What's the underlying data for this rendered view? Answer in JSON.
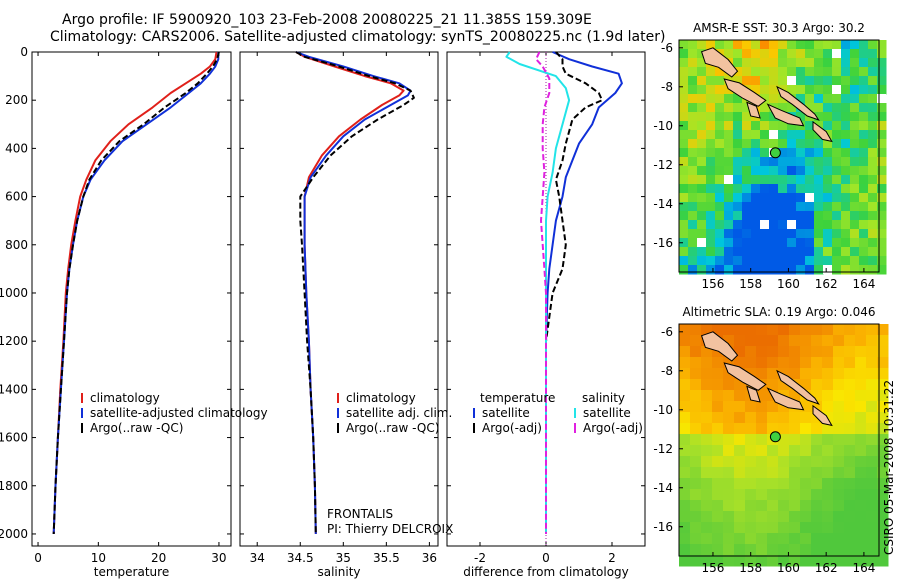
{
  "header": {
    "line1": "Argo profile: IF 5900920_103 23-Feb-2008 20080225_21 11.385S 159.309E",
    "line2": "Climatology: CARS2006. Satellite-adjusted climatology: synTS_20080225.nc (1.9d later)"
  },
  "watermark": "CSIRO 05-Mar-2008 10:31:22",
  "colors": {
    "climatology": "#e0201a",
    "satellite": "#1030d8",
    "argo": "#000000",
    "salt_sat": "#22e4e8",
    "salt_argo": "#e020e0"
  },
  "chart_data": [
    {
      "type": "line",
      "id": "temperature",
      "xlabel": "temperature",
      "ylabel": "",
      "xlim": [
        -1,
        32
      ],
      "ylim": [
        2050,
        0
      ],
      "xticks": [
        0,
        10,
        20,
        30
      ],
      "yticks": [
        0,
        200,
        400,
        600,
        800,
        1000,
        1200,
        1400,
        1600,
        1800,
        2000
      ],
      "series": [
        {
          "name": "climatology",
          "color": "#e0201a",
          "points": [
            [
              29.6,
              0
            ],
            [
              29.4,
              30
            ],
            [
              28.5,
              60
            ],
            [
              27.0,
              90
            ],
            [
              24.5,
              130
            ],
            [
              22.0,
              170
            ],
            [
              19.0,
              230
            ],
            [
              15.0,
              300
            ],
            [
              12.0,
              370
            ],
            [
              9.5,
              450
            ],
            [
              8.0,
              530
            ],
            [
              7.0,
              600
            ],
            [
              6.2,
              700
            ],
            [
              5.5,
              800
            ],
            [
              5.0,
              900
            ],
            [
              4.6,
              1000
            ],
            [
              4.2,
              1200
            ],
            [
              3.7,
              1400
            ],
            [
              3.3,
              1600
            ],
            [
              2.9,
              1800
            ],
            [
              2.6,
              2000
            ]
          ]
        },
        {
          "name": "satellite-adjusted climatology",
          "color": "#1030d8",
          "points": [
            [
              29.9,
              0
            ],
            [
              29.9,
              30
            ],
            [
              29.4,
              60
            ],
            [
              28.5,
              90
            ],
            [
              27.0,
              130
            ],
            [
              25.0,
              170
            ],
            [
              22.0,
              230
            ],
            [
              18.0,
              300
            ],
            [
              14.0,
              370
            ],
            [
              11.0,
              450
            ],
            [
              8.7,
              530
            ],
            [
              7.5,
              600
            ],
            [
              6.5,
              700
            ],
            [
              5.8,
              800
            ],
            [
              5.2,
              900
            ],
            [
              4.8,
              1000
            ],
            [
              4.3,
              1200
            ],
            [
              3.8,
              1400
            ],
            [
              3.3,
              1600
            ],
            [
              2.9,
              1800
            ],
            [
              2.6,
              2000
            ]
          ]
        },
        {
          "name": "Argo(..raw -QC)",
          "color": "#000000",
          "dashed": true,
          "points": [
            [
              30.0,
              0
            ],
            [
              29.7,
              30
            ],
            [
              29.0,
              60
            ],
            [
              28.0,
              90
            ],
            [
              26.5,
              130
            ],
            [
              24.5,
              170
            ],
            [
              21.0,
              230
            ],
            [
              17.5,
              300
            ],
            [
              13.5,
              370
            ],
            [
              10.5,
              450
            ],
            [
              8.5,
              530
            ],
            [
              7.5,
              600
            ],
            [
              6.5,
              700
            ],
            [
              5.8,
              800
            ],
            [
              5.2,
              900
            ],
            [
              4.8,
              1000
            ],
            [
              4.3,
              1200
            ],
            [
              3.8,
              1400
            ],
            [
              3.3,
              1600
            ],
            [
              2.9,
              1800
            ],
            [
              2.6,
              2000
            ]
          ]
        }
      ],
      "legend": [
        {
          "label": "climatology",
          "color": "#e0201a"
        },
        {
          "label": "satellite-adjusted climatology",
          "color": "#1030d8"
        },
        {
          "label": "Argo(..raw -QC)",
          "color": "#000000"
        }
      ]
    },
    {
      "type": "line",
      "id": "salinity",
      "xlabel": "salinity",
      "ylabel": "",
      "xlim": [
        33.8,
        36.1
      ],
      "ylim": [
        2050,
        0
      ],
      "xticks": [
        34,
        34.5,
        35,
        35.5,
        36
      ],
      "yticks": [],
      "series": [
        {
          "name": "climatology",
          "color": "#e0201a",
          "points": [
            [
              34.45,
              0
            ],
            [
              34.55,
              20
            ],
            [
              34.9,
              60
            ],
            [
              35.25,
              100
            ],
            [
              35.55,
              130
            ],
            [
              35.7,
              160
            ],
            [
              35.65,
              180
            ],
            [
              35.45,
              220
            ],
            [
              35.2,
              280
            ],
            [
              34.95,
              350
            ],
            [
              34.75,
              430
            ],
            [
              34.6,
              520
            ],
            [
              34.55,
              600
            ],
            [
              34.55,
              800
            ],
            [
              34.57,
              1000
            ],
            [
              34.6,
              1200
            ],
            [
              34.62,
              1400
            ],
            [
              34.65,
              1600
            ],
            [
              34.67,
              1800
            ],
            [
              34.68,
              2000
            ]
          ]
        },
        {
          "name": "satellite adj. clim.",
          "color": "#1030d8",
          "points": [
            [
              34.45,
              0
            ],
            [
              34.6,
              20
            ],
            [
              35.0,
              60
            ],
            [
              35.35,
              100
            ],
            [
              35.65,
              130
            ],
            [
              35.78,
              160
            ],
            [
              35.75,
              180
            ],
            [
              35.55,
              220
            ],
            [
              35.25,
              280
            ],
            [
              35.0,
              350
            ],
            [
              34.8,
              430
            ],
            [
              34.62,
              520
            ],
            [
              34.55,
              600
            ],
            [
              34.55,
              800
            ],
            [
              34.57,
              1000
            ],
            [
              34.6,
              1200
            ],
            [
              34.62,
              1400
            ],
            [
              34.65,
              1600
            ],
            [
              34.67,
              1800
            ],
            [
              34.68,
              2000
            ]
          ]
        },
        {
          "name": "Argo(..raw -QC)",
          "color": "#000000",
          "dashed": true,
          "points": [
            [
              34.45,
              0
            ],
            [
              34.55,
              20
            ],
            [
              34.95,
              60
            ],
            [
              35.3,
              100
            ],
            [
              35.6,
              130
            ],
            [
              35.78,
              160
            ],
            [
              35.82,
              190
            ],
            [
              35.7,
              220
            ],
            [
              35.4,
              280
            ],
            [
              35.1,
              350
            ],
            [
              34.85,
              430
            ],
            [
              34.65,
              520
            ],
            [
              34.5,
              600
            ],
            [
              34.5,
              700
            ],
            [
              34.52,
              800
            ],
            [
              34.55,
              1000
            ],
            [
              34.58,
              1200
            ],
            [
              34.62,
              1400
            ],
            [
              34.65,
              1600
            ],
            [
              34.67,
              1800
            ],
            [
              34.68,
              2000
            ]
          ]
        }
      ],
      "legend": [
        {
          "label": "climatology",
          "color": "#e0201a"
        },
        {
          "label": "satellite adj. clim.",
          "color": "#1030d8"
        },
        {
          "label": "Argo(..raw -QC)",
          "color": "#000000"
        }
      ],
      "annotation": [
        "FRONTALIS",
        "PI: Thierry DELCROIX"
      ]
    },
    {
      "type": "line",
      "id": "difference",
      "xlabel": "difference from climatology",
      "ylabel": "",
      "xlim": [
        -3,
        3
      ],
      "ylim": [
        2050,
        0
      ],
      "xticks": [
        -2,
        0,
        2
      ],
      "yticks": [],
      "series": [
        {
          "name": "temperature satellite",
          "color": "#1030d8",
          "points": [
            [
              0.2,
              0
            ],
            [
              0.7,
              30
            ],
            [
              1.4,
              60
            ],
            [
              2.2,
              90
            ],
            [
              2.3,
              130
            ],
            [
              2.1,
              170
            ],
            [
              1.6,
              230
            ],
            [
              1.4,
              300
            ],
            [
              1.0,
              380
            ],
            [
              0.8,
              450
            ],
            [
              0.6,
              520
            ],
            [
              0.5,
              600
            ],
            [
              0.3,
              700
            ],
            [
              0.2,
              800
            ],
            [
              0.1,
              900
            ],
            [
              0.05,
              1000
            ],
            [
              0.0,
              1200
            ],
            [
              0.0,
              1600
            ],
            [
              0.0,
              2000
            ]
          ]
        },
        {
          "name": "temperature Argo(-adj)",
          "color": "#000000",
          "dashed": true,
          "points": [
            [
              0.3,
              0
            ],
            [
              0.5,
              30
            ],
            [
              0.5,
              60
            ],
            [
              0.6,
              90
            ],
            [
              1.2,
              130
            ],
            [
              1.6,
              170
            ],
            [
              1.7,
              200
            ],
            [
              1.2,
              230
            ],
            [
              0.8,
              280
            ],
            [
              0.6,
              380
            ],
            [
              0.5,
              450
            ],
            [
              0.3,
              530
            ],
            [
              0.4,
              600
            ],
            [
              0.5,
              700
            ],
            [
              0.6,
              800
            ],
            [
              0.5,
              900
            ],
            [
              0.2,
              1000
            ],
            [
              0.0,
              1200
            ],
            [
              0.0,
              2000
            ]
          ]
        },
        {
          "name": "salinity satellite",
          "color": "#22e4e8",
          "points": [
            [
              -1.1,
              0
            ],
            [
              -1.2,
              20
            ],
            [
              -0.8,
              50
            ],
            [
              0.3,
              100
            ],
            [
              0.6,
              150
            ],
            [
              0.7,
              200
            ],
            [
              0.6,
              250
            ],
            [
              0.5,
              300
            ],
            [
              0.3,
              400
            ],
            [
              0.2,
              500
            ],
            [
              0.05,
              600
            ],
            [
              0.0,
              700
            ],
            [
              0.0,
              2000
            ]
          ]
        },
        {
          "name": "salinity Argo(-adj)",
          "color": "#e020e0",
          "dashed": true,
          "points": [
            [
              -0.2,
              0
            ],
            [
              -0.3,
              30
            ],
            [
              -0.1,
              60
            ],
            [
              0.1,
              110
            ],
            [
              0.1,
              170
            ],
            [
              -0.05,
              230
            ],
            [
              -0.1,
              300
            ],
            [
              -0.1,
              400
            ],
            [
              -0.05,
              500
            ],
            [
              -0.1,
              600
            ],
            [
              -0.15,
              700
            ],
            [
              -0.1,
              800
            ],
            [
              -0.05,
              900
            ],
            [
              0.0,
              1000
            ],
            [
              0.0,
              2000
            ]
          ]
        }
      ],
      "legend_temperature_title": "temperature",
      "legend_salinity_title": "salinity",
      "legend": [
        {
          "label": "satellite",
          "color": "#1030d8"
        },
        {
          "label": "Argo(-adj)",
          "color": "#000000"
        },
        {
          "label": "satellite",
          "color": "#22e4e8"
        },
        {
          "label": "Argo(-adj)",
          "color": "#e020e0"
        }
      ]
    },
    {
      "type": "heatmap",
      "id": "sst_map",
      "title": "AMSR-E SST: 30.3 Argo: 30.2",
      "xlim": [
        154.2,
        164.8
      ],
      "ylim": [
        -17.5,
        -5.6
      ],
      "xticks": [
        156,
        158,
        160,
        162,
        164
      ],
      "yticks": [
        -6,
        -8,
        -10,
        -12,
        -14,
        -16
      ],
      "marker": {
        "lon": 159.309,
        "lat": -11.385
      }
    },
    {
      "type": "heatmap",
      "id": "sla_map",
      "title": "Altimetric SLA: 0.19 Argo: 0.046",
      "xlim": [
        154.2,
        164.8
      ],
      "ylim": [
        -17.5,
        -5.6
      ],
      "xticks": [
        156,
        158,
        160,
        162,
        164
      ],
      "yticks": [
        -6,
        -8,
        -10,
        -12,
        -14,
        -16
      ],
      "marker": {
        "lon": 159.309,
        "lat": -11.385
      }
    }
  ]
}
